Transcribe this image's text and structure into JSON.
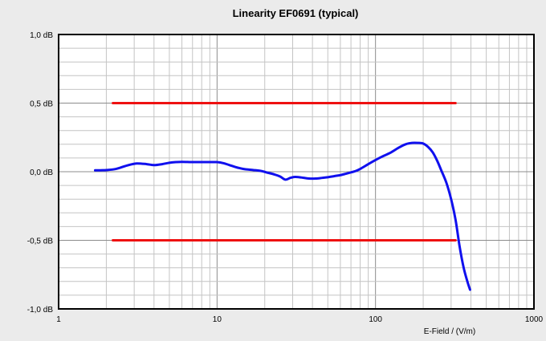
{
  "chart_data": {
    "type": "line",
    "title": "Linearity EF0691 (typical)",
    "xlabel": "E-Field / (V/m)",
    "ylabel": "",
    "x_scale": "log",
    "xlim": [
      1,
      1000
    ],
    "ylim": [
      -1.0,
      1.0
    ],
    "grid": true,
    "x_ticks": [
      {
        "value": 1,
        "label": "1"
      },
      {
        "value": 10,
        "label": "10"
      },
      {
        "value": 100,
        "label": "100"
      },
      {
        "value": 1000,
        "label": "1000"
      }
    ],
    "y_ticks": [
      {
        "value": 1.0,
        "label": "1,0 dB"
      },
      {
        "value": 0.5,
        "label": "0,5 dB"
      },
      {
        "value": 0.0,
        "label": "0,0 dB"
      },
      {
        "value": -0.5,
        "label": "-0,5 dB"
      },
      {
        "value": -1.0,
        "label": "-1,0 dB"
      }
    ],
    "series": [
      {
        "color": "#ee1111",
        "x": [
          2.2,
          320
        ],
        "y": [
          0.5,
          0.5
        ]
      },
      {
        "color": "#ee1111",
        "x": [
          2.2,
          320
        ],
        "y": [
          -0.5,
          -0.5
        ]
      },
      {
        "color": "#1010ee",
        "x": [
          1.7,
          2,
          2.3,
          2.7,
          3.1,
          3.6,
          4,
          4.5,
          5,
          5.5,
          6,
          7,
          8,
          9,
          10,
          11,
          12,
          13,
          14,
          15,
          17,
          19,
          21,
          23,
          25,
          27,
          29,
          31,
          34,
          38,
          42,
          46,
          50,
          55,
          60,
          65,
          70,
          75,
          80,
          90,
          100,
          110,
          125,
          140,
          155,
          170,
          185,
          200,
          215,
          230,
          245,
          260,
          280,
          300,
          320,
          340,
          360,
          380,
          395
        ],
        "y": [
          0.01,
          0.012,
          0.02,
          0.045,
          0.06,
          0.055,
          0.048,
          0.055,
          0.065,
          0.07,
          0.072,
          0.07,
          0.07,
          0.07,
          0.07,
          0.062,
          0.048,
          0.035,
          0.025,
          0.018,
          0.012,
          0.005,
          -0.008,
          -0.02,
          -0.035,
          -0.058,
          -0.045,
          -0.038,
          -0.042,
          -0.05,
          -0.05,
          -0.045,
          -0.04,
          -0.032,
          -0.025,
          -0.015,
          -0.005,
          0.005,
          0.02,
          0.055,
          0.085,
          0.11,
          0.14,
          0.175,
          0.2,
          0.21,
          0.21,
          0.205,
          0.18,
          0.14,
          0.08,
          0.01,
          -0.08,
          -0.2,
          -0.35,
          -0.55,
          -0.7,
          -0.8,
          -0.86
        ]
      }
    ]
  }
}
